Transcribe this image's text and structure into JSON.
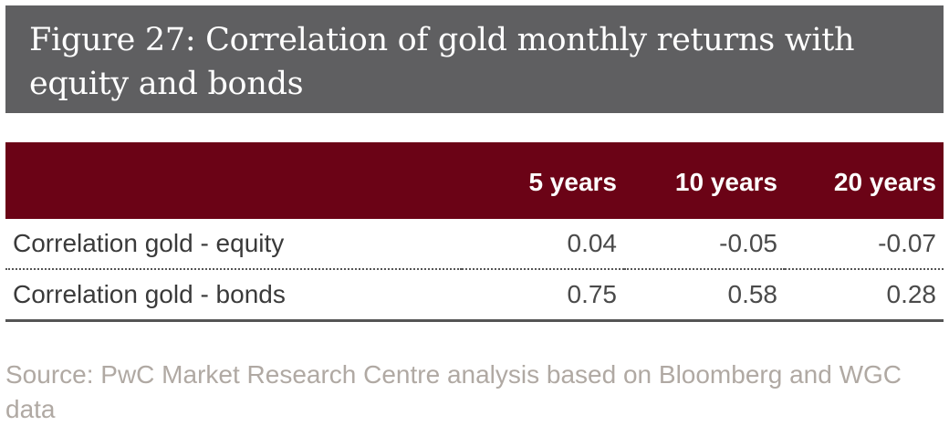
{
  "title": "Figure 27: Correlation of gold monthly returns with equity and bonds",
  "chart_data": {
    "type": "table",
    "columns": [
      "",
      "5 years",
      "10 years",
      "20 years"
    ],
    "rows": [
      {
        "label": "Correlation gold - equity",
        "values": [
          "0.04",
          "-0.05",
          "-0.07"
        ]
      },
      {
        "label": "Correlation gold - bonds",
        "values": [
          "0.75",
          "0.58",
          "0.28"
        ]
      }
    ]
  },
  "source": "Source: PwC Market Research Centre analysis based on Bloomberg and WGC data",
  "colors": {
    "title_background": "#5f5f61",
    "header_background": "#6b0316",
    "source_text": "#b0a9a3"
  }
}
